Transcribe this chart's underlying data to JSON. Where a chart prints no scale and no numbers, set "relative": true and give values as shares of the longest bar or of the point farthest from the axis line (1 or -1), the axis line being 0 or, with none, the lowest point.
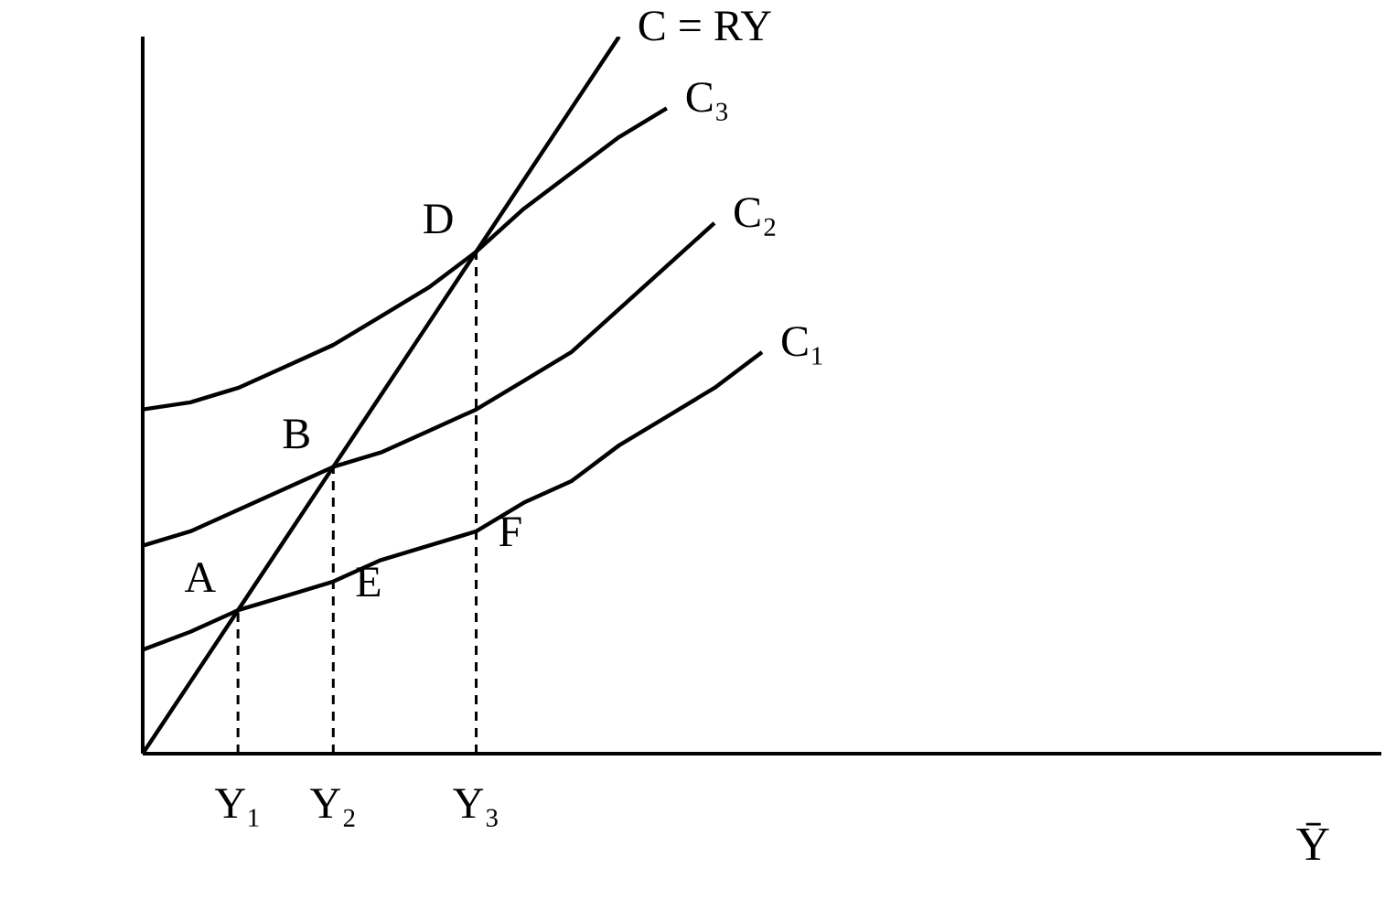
{
  "chart_data": {
    "type": "line",
    "relative": true,
    "xlabel": "Ȳ",
    "categories": [
      null,
      null,
      "Y₁",
      null,
      "Y₂",
      null,
      null,
      "Y₃",
      null,
      null,
      null,
      null,
      null,
      null,
      null,
      null,
      null,
      null,
      null,
      null,
      null,
      null,
      null,
      null,
      null,
      null,
      null
    ],
    "series": [
      {
        "name": "C = RY",
        "color": "#000000",
        "values": [
          0,
          0.1,
          0.2,
          0.3,
          0.4,
          0.5,
          0.6,
          0.7,
          0.8,
          0.9,
          1.0,
          null,
          null,
          null,
          null,
          null,
          null,
          null,
          null,
          null,
          null,
          null,
          null,
          null,
          null,
          null,
          null
        ]
      },
      {
        "name": "C₃",
        "color": "#000000",
        "values": [
          0.48,
          0.49,
          0.51,
          0.54,
          0.57,
          0.61,
          0.65,
          0.7,
          0.76,
          0.81,
          0.86,
          0.9,
          null,
          null,
          null,
          null,
          null,
          null,
          null,
          null,
          null,
          null,
          null,
          null,
          null,
          null,
          null
        ]
      },
      {
        "name": "C₂",
        "color": "#000000",
        "values": [
          0.29,
          0.31,
          0.34,
          0.37,
          0.4,
          0.42,
          0.45,
          0.48,
          0.52,
          0.56,
          0.62,
          0.68,
          0.74,
          null,
          null,
          null,
          null,
          null,
          null,
          null,
          null,
          null,
          null,
          null,
          null,
          null,
          null
        ]
      },
      {
        "name": "C₁",
        "color": "#000000",
        "values": [
          0.145,
          0.17,
          0.2,
          0.22,
          0.24,
          0.27,
          0.29,
          0.31,
          0.35,
          0.38,
          0.43,
          0.47,
          0.51,
          0.56,
          null,
          null,
          null,
          null,
          null,
          null,
          null,
          null,
          null,
          null,
          null,
          null,
          null
        ]
      }
    ],
    "ref_lines": [
      {
        "axis": "x",
        "value": "Y₁",
        "line_style": "dashed"
      },
      {
        "axis": "x",
        "value": "Y₂",
        "line_style": "dashed"
      },
      {
        "axis": "x",
        "value": "Y₃",
        "line_style": "dashed"
      }
    ],
    "annotations": [
      {
        "text": "A",
        "x": "Y₁",
        "y": 0.2
      },
      {
        "text": "B",
        "x": "Y₂",
        "y": 0.4
      },
      {
        "text": "D",
        "x": "Y₃",
        "y": 0.7
      },
      {
        "text": "E",
        "x": "Y₂",
        "y": 0.24
      },
      {
        "text": "F",
        "x": "Y₃",
        "y": 0.31
      }
    ],
    "legend": false,
    "grid": false,
    "marker": "none",
    "line_style": "solid"
  }
}
